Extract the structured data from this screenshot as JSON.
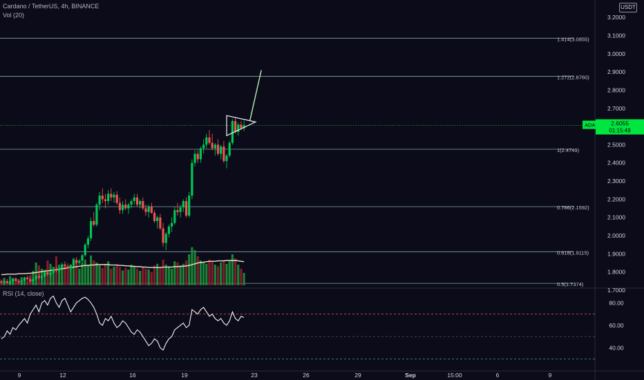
{
  "header": {
    "title": "Cardano / TetherUS, 4h, BINANCE",
    "indicator": "Vol (20)"
  },
  "price_axis": {
    "currency": "USDT",
    "ticks": [
      "3.2000",
      "3.1000",
      "3.0000",
      "2.9000",
      "2.8000",
      "2.7000",
      "2.5000",
      "2.4000",
      "2.3000",
      "2.2000",
      "2.1000",
      "2.0000",
      "1.9000",
      "1.8000",
      "1.7000"
    ],
    "tick_values": [
      3.2,
      3.1,
      3.0,
      2.9,
      2.8,
      2.7,
      2.5,
      2.4,
      2.3,
      2.2,
      2.1,
      2.0,
      1.9,
      1.8,
      1.7
    ]
  },
  "last_price": {
    "symbol": "ADAUSDT",
    "price": "2.6055",
    "countdown": "01:15:49",
    "value": 2.6055,
    "color": "#00e640"
  },
  "fib_levels": [
    {
      "label": "1.414(3.0855)",
      "value": 3.0855
    },
    {
      "label": "1.272(2.8760)",
      "value": 2.876
    },
    {
      "label": "1(2.4749)",
      "value": 2.4749
    },
    {
      "label": "0.786(2.1592)",
      "value": 2.1592
    },
    {
      "label": "0.618(1.9115)",
      "value": 1.9115
    },
    {
      "label": "0.5(1.7374)",
      "value": 1.7374
    }
  ],
  "rsi": {
    "title": "RSI (14, close)",
    "ticks": [
      "80.00",
      "60.00",
      "40.00"
    ],
    "tick_values": [
      80,
      60,
      40
    ],
    "upper_band": 70,
    "lower_band": 30,
    "middle": 50
  },
  "time_axis": {
    "labels": [
      "9",
      "12",
      "16",
      "19",
      "23",
      "26",
      "29",
      "Sep",
      "15:00",
      "6",
      "9"
    ]
  },
  "colors": {
    "background": "#0b0b1a",
    "up": "#26a69a",
    "up_bright": "#00c853",
    "down": "#ef5350",
    "fib_line": "#b0dcc8",
    "volume_ma": "#f0e6c8",
    "rsi_line": "#f5f5f5",
    "rsi_band_upper": "#e05050",
    "rsi_band_lower": "#4aa8c0"
  },
  "chart_data": {
    "type": "candlestick",
    "interval": "4h",
    "ylim": [
      1.7,
      3.25
    ],
    "candles": [
      [
        1.748,
        1.76,
        1.736,
        1.742
      ],
      [
        1.742,
        1.755,
        1.732,
        1.75
      ],
      [
        1.75,
        1.762,
        1.738,
        1.74
      ],
      [
        1.74,
        1.754,
        1.728,
        1.748
      ],
      [
        1.748,
        1.77,
        1.742,
        1.764
      ],
      [
        1.764,
        1.772,
        1.745,
        1.75
      ],
      [
        1.75,
        1.762,
        1.734,
        1.744
      ],
      [
        1.744,
        1.758,
        1.73,
        1.752
      ],
      [
        1.752,
        1.775,
        1.746,
        1.77
      ],
      [
        1.77,
        1.782,
        1.755,
        1.76
      ],
      [
        1.76,
        1.772,
        1.742,
        1.748
      ],
      [
        1.748,
        1.766,
        1.736,
        1.76
      ],
      [
        1.76,
        1.784,
        1.752,
        1.778
      ],
      [
        1.778,
        1.792,
        1.76,
        1.768
      ],
      [
        1.768,
        1.782,
        1.752,
        1.776
      ],
      [
        1.776,
        1.804,
        1.77,
        1.798
      ],
      [
        1.798,
        1.812,
        1.778,
        1.786
      ],
      [
        1.786,
        1.802,
        1.77,
        1.796
      ],
      [
        1.796,
        1.822,
        1.788,
        1.814
      ],
      [
        1.814,
        1.832,
        1.798,
        1.806
      ],
      [
        1.806,
        1.828,
        1.794,
        1.82
      ],
      [
        1.82,
        1.852,
        1.812,
        1.842
      ],
      [
        1.842,
        1.858,
        1.822,
        1.832
      ],
      [
        1.832,
        1.848,
        1.81,
        1.822
      ],
      [
        1.822,
        1.842,
        1.806,
        1.838
      ],
      [
        1.838,
        1.874,
        1.828,
        1.866
      ],
      [
        1.866,
        1.882,
        1.842,
        1.85
      ],
      [
        1.85,
        1.87,
        1.836,
        1.862
      ],
      [
        1.862,
        1.9,
        1.852,
        1.892
      ],
      [
        1.892,
        1.96,
        1.884,
        1.95
      ],
      [
        1.95,
        2.0,
        1.93,
        1.985
      ],
      [
        1.985,
        2.1,
        1.97,
        2.08
      ],
      [
        2.08,
        2.13,
        2.05,
        2.06
      ],
      [
        2.06,
        2.18,
        2.05,
        2.17
      ],
      [
        2.17,
        2.24,
        2.14,
        2.22
      ],
      [
        2.22,
        2.26,
        2.18,
        2.2
      ],
      [
        2.2,
        2.23,
        2.15,
        2.19
      ],
      [
        2.19,
        2.25,
        2.17,
        2.23
      ],
      [
        2.23,
        2.26,
        2.19,
        2.21
      ],
      [
        2.21,
        2.24,
        2.18,
        2.225
      ],
      [
        2.225,
        2.245,
        2.17,
        2.18
      ],
      [
        2.18,
        2.21,
        2.12,
        2.14
      ],
      [
        2.14,
        2.19,
        2.12,
        2.17
      ],
      [
        2.17,
        2.2,
        2.14,
        2.15
      ],
      [
        2.15,
        2.18,
        2.12,
        2.17
      ],
      [
        2.17,
        2.2,
        2.15,
        2.19
      ],
      [
        2.19,
        2.23,
        2.17,
        2.21
      ],
      [
        2.21,
        2.23,
        2.16,
        2.17
      ],
      [
        2.17,
        2.2,
        2.15,
        2.19
      ],
      [
        2.19,
        2.21,
        2.14,
        2.15
      ],
      [
        2.15,
        2.17,
        2.11,
        2.13
      ],
      [
        2.13,
        2.17,
        2.1,
        2.16
      ],
      [
        2.16,
        2.18,
        2.12,
        2.125
      ],
      [
        2.125,
        2.14,
        2.07,
        2.08
      ],
      [
        2.08,
        2.11,
        2.04,
        2.1
      ],
      [
        2.1,
        2.12,
        2.03,
        2.04
      ],
      [
        2.04,
        2.07,
        1.94,
        1.96
      ],
      [
        1.96,
        2.02,
        1.92,
        2.01
      ],
      [
        2.01,
        2.06,
        1.99,
        2.05
      ],
      [
        2.05,
        2.1,
        2.02,
        2.07
      ],
      [
        2.07,
        2.16,
        2.06,
        2.14
      ],
      [
        2.14,
        2.18,
        2.11,
        2.13
      ],
      [
        2.13,
        2.17,
        2.1,
        2.155
      ],
      [
        2.155,
        2.2,
        2.13,
        2.19
      ],
      [
        2.19,
        2.21,
        2.1,
        2.11
      ],
      [
        2.11,
        2.24,
        2.1,
        2.22
      ],
      [
        2.22,
        2.42,
        2.2,
        2.4
      ],
      [
        2.4,
        2.47,
        2.38,
        2.45
      ],
      [
        2.45,
        2.47,
        2.4,
        2.42
      ],
      [
        2.42,
        2.49,
        2.4,
        2.48
      ],
      [
        2.48,
        2.53,
        2.45,
        2.5
      ],
      [
        2.5,
        2.56,
        2.48,
        2.54
      ],
      [
        2.54,
        2.58,
        2.5,
        2.51
      ],
      [
        2.51,
        2.56,
        2.47,
        2.48
      ],
      [
        2.48,
        2.51,
        2.44,
        2.5
      ],
      [
        2.5,
        2.53,
        2.44,
        2.45
      ],
      [
        2.45,
        2.5,
        2.42,
        2.49
      ],
      [
        2.49,
        2.52,
        2.4,
        2.41
      ],
      [
        2.41,
        2.45,
        2.37,
        2.44
      ],
      [
        2.44,
        2.52,
        2.43,
        2.51
      ],
      [
        2.51,
        2.64,
        2.5,
        2.63
      ],
      [
        2.63,
        2.65,
        2.56,
        2.57
      ],
      [
        2.57,
        2.62,
        2.55,
        2.61
      ],
      [
        2.61,
        2.63,
        2.58,
        2.59
      ],
      [
        2.59,
        2.63,
        2.575,
        2.6055
      ]
    ],
    "volume": [
      0.12,
      0.18,
      0.1,
      0.22,
      0.15,
      0.09,
      0.14,
      0.2,
      0.16,
      0.12,
      0.25,
      0.35,
      0.55,
      0.48,
      0.4,
      0.38,
      0.6,
      0.52,
      0.45,
      0.7,
      0.5,
      0.42,
      0.46,
      0.38,
      0.5,
      0.65,
      0.58,
      0.4,
      0.55,
      0.62,
      0.5,
      0.72,
      0.6,
      0.55,
      0.48,
      0.42,
      0.52,
      0.58,
      0.4,
      0.45,
      0.5,
      0.44,
      0.36,
      0.42,
      0.38,
      0.5,
      0.46,
      0.4,
      0.35,
      0.45,
      0.4,
      0.38,
      0.32,
      0.48,
      0.52,
      0.44,
      0.62,
      0.5,
      0.46,
      0.4,
      0.58,
      0.55,
      0.48,
      0.52,
      0.6,
      0.75,
      0.92,
      0.85,
      0.7,
      0.6,
      0.55,
      0.52,
      0.62,
      0.58,
      0.5,
      0.46,
      0.55,
      0.6,
      0.52,
      0.58,
      0.75,
      0.65,
      0.5,
      0.4,
      0.3
    ],
    "volume_ma": [
      0.26,
      0.26,
      0.27,
      0.27,
      0.27,
      0.27,
      0.28,
      0.28,
      0.28,
      0.29,
      0.29,
      0.3,
      0.31,
      0.32,
      0.33,
      0.34,
      0.35,
      0.36,
      0.37,
      0.38,
      0.39,
      0.4,
      0.41,
      0.42,
      0.43,
      0.44,
      0.45,
      0.46,
      0.47,
      0.48,
      0.48,
      0.49,
      0.49,
      0.5,
      0.5,
      0.5,
      0.5,
      0.5,
      0.49,
      0.49,
      0.49,
      0.48,
      0.48,
      0.47,
      0.47,
      0.46,
      0.46,
      0.45,
      0.45,
      0.44,
      0.44,
      0.43,
      0.43,
      0.43,
      0.43,
      0.43,
      0.44,
      0.44,
      0.44,
      0.44,
      0.45,
      0.45,
      0.46,
      0.46,
      0.47,
      0.48,
      0.5,
      0.52,
      0.54,
      0.55,
      0.56,
      0.57,
      0.58,
      0.58,
      0.58,
      0.59,
      0.59,
      0.59,
      0.6,
      0.6,
      0.6,
      0.6,
      0.59,
      0.58,
      0.57
    ],
    "rsi": [
      48,
      50,
      55,
      52,
      58,
      56,
      60,
      63,
      66,
      62,
      70,
      74,
      78,
      72,
      80,
      82,
      78,
      84,
      86,
      80,
      76,
      82,
      84,
      78,
      72,
      76,
      80,
      82,
      84,
      85,
      83,
      80,
      76,
      70,
      62,
      60,
      66,
      64,
      68,
      62,
      58,
      60,
      64,
      62,
      58,
      54,
      52,
      56,
      54,
      50,
      46,
      42,
      44,
      48,
      46,
      40,
      38,
      44,
      48,
      50,
      56,
      58,
      60,
      62,
      58,
      60,
      74,
      72,
      70,
      74,
      76,
      72,
      68,
      70,
      66,
      64,
      66,
      62,
      60,
      64,
      72,
      66,
      64,
      68,
      67
    ],
    "projection": [
      [
        2.63,
        2.65
      ],
      [
        2.88,
        2.91
      ]
    ],
    "triangle": [
      [
        2.66,
        2.64
      ],
      [
        2.55,
        2.61
      ]
    ]
  }
}
